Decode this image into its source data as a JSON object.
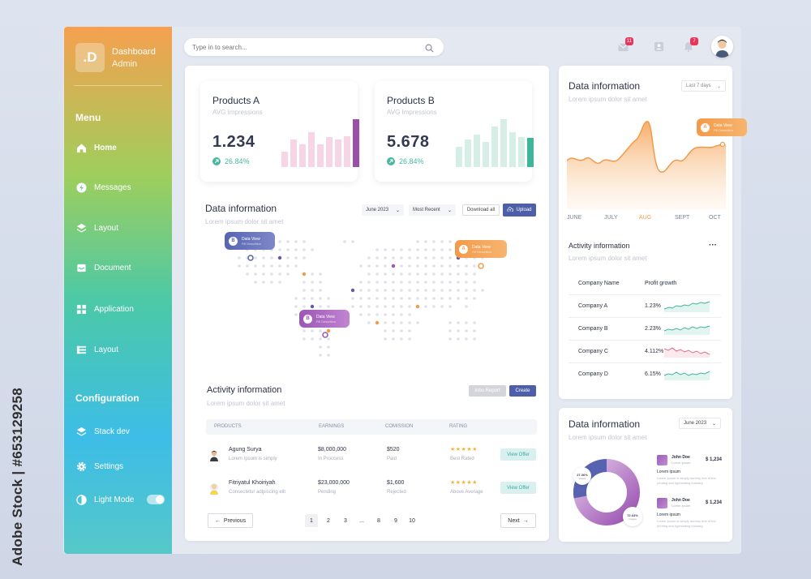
{
  "sidebar": {
    "logo": ".D",
    "brand_line1": "Dashboard",
    "brand_line2": "Admin",
    "menu_heading": "Menu",
    "menu_items": [
      {
        "label": "Home",
        "icon": "home-icon"
      },
      {
        "label": "Messages",
        "icon": "bolt-icon"
      },
      {
        "label": "Layout",
        "icon": "layers-icon"
      },
      {
        "label": "Document",
        "icon": "inbox-icon"
      },
      {
        "label": "Application",
        "icon": "grid-icon"
      },
      {
        "label": "Layout",
        "icon": "list-icon"
      }
    ],
    "config_heading": "Configuration",
    "config_items": [
      {
        "label": "Stack dev",
        "icon": "layers-icon"
      },
      {
        "label": "Settings",
        "icon": "gear-icon"
      },
      {
        "label": "Light Mode",
        "icon": "half-moon-icon"
      }
    ]
  },
  "topbar": {
    "search_placeholder": "Type in to search...",
    "mail_badge": "11",
    "bell_badge": "7"
  },
  "products": [
    {
      "title": "Products A",
      "subtitle": "AVG Impressions",
      "value": "1.234",
      "change": "26.84%",
      "bars": [
        0.3,
        0.55,
        0.45,
        0.7,
        0.45,
        0.6,
        0.55,
        0.62,
        0.95
      ]
    },
    {
      "title": "Products B",
      "subtitle": "AVG Impressions",
      "value": "5.678",
      "change": "26.84%",
      "bars": [
        0.4,
        0.55,
        0.65,
        0.5,
        0.8,
        0.95,
        0.7,
        0.6,
        0.58
      ]
    }
  ],
  "map_section": {
    "title": "Data information",
    "subtitle": "Lorem ipsum dolor sit amet",
    "filter1": "June 2023",
    "filter2": "Most Recent",
    "download_label": "Download all",
    "upload_label": "Upload",
    "pins": [
      {
        "letter": "B",
        "title": "Data View",
        "desc": "Fill Descrition"
      },
      {
        "letter": "A",
        "title": "Data View",
        "desc": "Fill Descrition"
      },
      {
        "letter": "B",
        "title": "Data View",
        "desc": "Fill Descrition"
      }
    ]
  },
  "activity": {
    "title": "Activity information",
    "subtitle": "Lorem ipsum dolor sit amet",
    "import_label": "Inbo Report",
    "create_label": "Create",
    "columns": [
      "PRODUCTS",
      "EARNINGS",
      "COMISSION",
      "RATING"
    ],
    "rows": [
      {
        "name": "Agung Surya",
        "desc": "Lorem Ipsum is simply",
        "earnings": "$8,000,000",
        "earn_status": "In Proccess",
        "comission": "$520",
        "com_status": "Paid",
        "stars": "★★★★★",
        "rating_label": "Best Rated",
        "action": "View Offer"
      },
      {
        "name": "Fitriyatul Khoiriyah",
        "desc": "Consectetur adipiscing elit",
        "earnings": "$23,000,000",
        "earn_status": "Pending",
        "comission": "$1,600",
        "com_status": "Rejected",
        "stars": "★★★★★",
        "rating_label": "Above Average",
        "action": "View Offer"
      }
    ],
    "prev_label": "Previous",
    "next_label": "Next",
    "pages": [
      "1",
      "2",
      "3",
      "...",
      "8",
      "9",
      "10"
    ]
  },
  "right_chart": {
    "title": "Data information",
    "subtitle": "Lorem ipsum dolor sit amet",
    "range": "Last 7 days",
    "months": [
      "JUNE",
      "JULY",
      "AUG",
      "SEPT",
      "OCT"
    ],
    "active_month": "AUG",
    "tooltip_letter": "A",
    "tooltip_title": "Data View",
    "tooltip_desc": "Fill Descrition",
    "accent": "#f5a04b"
  },
  "companies": {
    "title": "Activity information",
    "subtitle": "Lorem ipsum dolor sit amet",
    "col1": "Company Name",
    "col2": "Profit growth",
    "rows": [
      {
        "name": "Company A",
        "growth": "1.23%",
        "color": "#3fb59a"
      },
      {
        "name": "Company B",
        "growth": "2.23%",
        "color": "#3fb59a"
      },
      {
        "name": "Company C",
        "growth": "4.112%",
        "color": "#e36a84"
      },
      {
        "name": "Company D",
        "growth": "6.15%",
        "color": "#3fb59a"
      }
    ]
  },
  "donut": {
    "title": "Data information",
    "subtitle": "Lorem ipsum dolor sit amet",
    "filter": "June 2023",
    "label1_value": "27.36%",
    "label1_name": "Videos",
    "label2_value": "72.64%",
    "label2_name": "Images",
    "legend": [
      {
        "name": "John Doe",
        "desc": "Lorem Ipsum",
        "value": "$ 1,234",
        "label": "Lorem ipsum",
        "text": "Lorem Ipsum is simply dummy text of the printing and typesetting industry."
      },
      {
        "name": "John Doe",
        "desc": "Lorem Ipsum",
        "value": "$ 1,234",
        "label": "Lorem ipsum",
        "text": "Lorem Ipsum is simply dummy text of the printing and typesetting industry."
      }
    ]
  },
  "watermark": "Adobe Stock | #653129258"
}
